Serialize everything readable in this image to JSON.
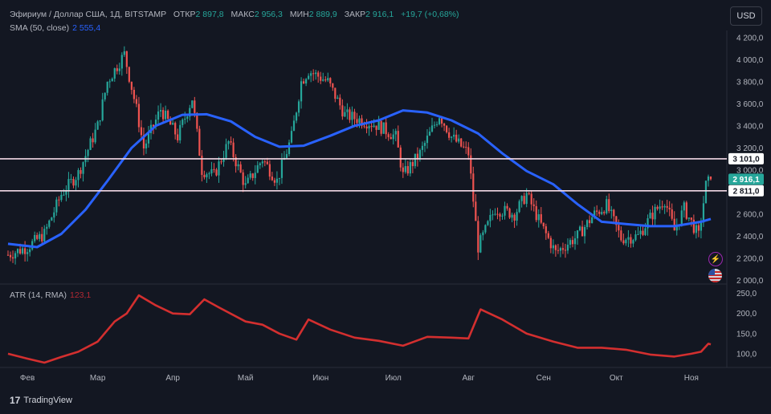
{
  "header": {
    "title": "Эфириум / Доллар США, 1Д, BITSTAMP",
    "open_label": "ОТКР",
    "open_value": "2 897,8",
    "high_label": "МАКС",
    "high_value": "2 956,3",
    "low_label": "МИН",
    "low_value": "2 889,9",
    "close_label": "ЗАКР",
    "close_value": "2 916,1",
    "change": "+19,7 (+0,68%)"
  },
  "sma_legend": {
    "label": "SMA (50, close)",
    "value": "2 555,4"
  },
  "atr_legend": {
    "label": "ATR (14, RMA)",
    "value": "123,1"
  },
  "currency_button": "USD",
  "branding": "TradingView",
  "icons": {
    "alert": "lightning-icon",
    "flag": "us-flag-icon"
  },
  "colors": {
    "background": "#131722",
    "up": "#26a69a",
    "down": "#ef5350",
    "sma": "#2962ff",
    "atr": "#d32f2f",
    "hline": "#f3d9e6",
    "label_bg": "#ffffff",
    "last_price_bg": "#26a69a"
  },
  "chart_data": [
    {
      "type": "candlestick",
      "symbol": "ETH/USD",
      "interval": "1D",
      "y_ticks": [
        "4 200,0",
        "4 000,0",
        "3 800,0",
        "3 600,0",
        "3 400,0",
        "3 200,0",
        "3 000,0",
        "2 800,0",
        "2 600,0",
        "2 400,0",
        "2 200,0",
        "2 000,0"
      ],
      "ylim": [
        1980,
        4250
      ],
      "x_ticks": [
        "Фев",
        "Мар",
        "Апр",
        "Май",
        "Июн",
        "Июл",
        "Авг",
        "Сен",
        "Окт",
        "Ноя"
      ],
      "horizontal_lines": [
        {
          "price": 3101.0,
          "label": "3 101,0"
        },
        {
          "price": 2811.0,
          "label": "2 811,0"
        }
      ],
      "last_price": {
        "price": 2916.1,
        "label": "2 916,1"
      },
      "close_path": [
        {
          "t": "2024-01-24",
          "close": 2230
        },
        {
          "t": "2024-02-01",
          "close": 2300
        },
        {
          "t": "2024-02-08",
          "close": 2420
        },
        {
          "t": "2024-02-15",
          "close": 2780
        },
        {
          "t": "2024-02-22",
          "close": 2970
        },
        {
          "t": "2024-03-01",
          "close": 3400
        },
        {
          "t": "2024-03-05",
          "close": 3800
        },
        {
          "t": "2024-03-12",
          "close": 4050
        },
        {
          "t": "2024-03-17",
          "close": 3550
        },
        {
          "t": "2024-03-20",
          "close": 3200
        },
        {
          "t": "2024-03-27",
          "close": 3550
        },
        {
          "t": "2024-04-03",
          "close": 3300
        },
        {
          "t": "2024-04-09",
          "close": 3650
        },
        {
          "t": "2024-04-13",
          "close": 3000
        },
        {
          "t": "2024-04-18",
          "close": 2950
        },
        {
          "t": "2024-04-24",
          "close": 3250
        },
        {
          "t": "2024-05-01",
          "close": 2850
        },
        {
          "t": "2024-05-08",
          "close": 3100
        },
        {
          "t": "2024-05-14",
          "close": 2900
        },
        {
          "t": "2024-05-20",
          "close": 3300
        },
        {
          "t": "2024-05-24",
          "close": 3800
        },
        {
          "t": "2024-05-27",
          "close": 3900
        },
        {
          "t": "2024-06-04",
          "close": 3800
        },
        {
          "t": "2024-06-11",
          "close": 3500
        },
        {
          "t": "2024-06-18",
          "close": 3450
        },
        {
          "t": "2024-06-25",
          "close": 3400
        },
        {
          "t": "2024-07-02",
          "close": 3300
        },
        {
          "t": "2024-07-05",
          "close": 2950
        },
        {
          "t": "2024-07-12",
          "close": 3150
        },
        {
          "t": "2024-07-20",
          "close": 3500
        },
        {
          "t": "2024-07-25",
          "close": 3300
        },
        {
          "t": "2024-08-01",
          "close": 3150
        },
        {
          "t": "2024-08-05",
          "close": 2300
        },
        {
          "t": "2024-08-12",
          "close": 2650
        },
        {
          "t": "2024-08-20",
          "close": 2600
        },
        {
          "t": "2024-08-25",
          "close": 2780
        },
        {
          "t": "2024-08-31",
          "close": 2500
        },
        {
          "t": "2024-09-06",
          "close": 2250
        },
        {
          "t": "2024-09-15",
          "close": 2400
        },
        {
          "t": "2024-09-22",
          "close": 2600
        },
        {
          "t": "2024-09-27",
          "close": 2680
        },
        {
          "t": "2024-10-03",
          "close": 2380
        },
        {
          "t": "2024-10-10",
          "close": 2400
        },
        {
          "t": "2024-10-16",
          "close": 2600
        },
        {
          "t": "2024-10-21",
          "close": 2730
        },
        {
          "t": "2024-10-25",
          "close": 2450
        },
        {
          "t": "2024-10-29",
          "close": 2650
        },
        {
          "t": "2024-11-04",
          "close": 2400
        },
        {
          "t": "2024-11-07",
          "close": 2860
        },
        {
          "t": "2024-11-09",
          "close": 2916.1
        }
      ]
    },
    {
      "type": "line",
      "name": "SMA (50, close)",
      "points": [
        {
          "t": "2024-01-24",
          "v": 2330
        },
        {
          "t": "2024-02-05",
          "v": 2300
        },
        {
          "t": "2024-02-15",
          "v": 2420
        },
        {
          "t": "2024-02-25",
          "v": 2640
        },
        {
          "t": "2024-03-05",
          "v": 2900
        },
        {
          "t": "2024-03-15",
          "v": 3200
        },
        {
          "t": "2024-03-25",
          "v": 3400
        },
        {
          "t": "2024-04-05",
          "v": 3500
        },
        {
          "t": "2024-04-15",
          "v": 3505
        },
        {
          "t": "2024-04-25",
          "v": 3440
        },
        {
          "t": "2024-05-05",
          "v": 3300
        },
        {
          "t": "2024-05-15",
          "v": 3210
        },
        {
          "t": "2024-05-25",
          "v": 3220
        },
        {
          "t": "2024-06-05",
          "v": 3310
        },
        {
          "t": "2024-06-15",
          "v": 3400
        },
        {
          "t": "2024-06-25",
          "v": 3450
        },
        {
          "t": "2024-07-05",
          "v": 3540
        },
        {
          "t": "2024-07-15",
          "v": 3520
        },
        {
          "t": "2024-07-25",
          "v": 3450
        },
        {
          "t": "2024-08-05",
          "v": 3330
        },
        {
          "t": "2024-08-15",
          "v": 3150
        },
        {
          "t": "2024-08-25",
          "v": 2990
        },
        {
          "t": "2024-09-05",
          "v": 2870
        },
        {
          "t": "2024-09-15",
          "v": 2690
        },
        {
          "t": "2024-09-25",
          "v": 2530
        },
        {
          "t": "2024-10-05",
          "v": 2510
        },
        {
          "t": "2024-10-15",
          "v": 2490
        },
        {
          "t": "2024-10-25",
          "v": 2490
        },
        {
          "t": "2024-11-05",
          "v": 2530
        },
        {
          "t": "2024-11-09",
          "v": 2555.4
        }
      ]
    },
    {
      "type": "line",
      "name": "ATR (14, RMA)",
      "y_ticks": [
        "250,0",
        "200,0",
        "150,0",
        "100,0"
      ],
      "ylim": [
        70,
        265
      ],
      "points": [
        {
          "t": "2024-01-24",
          "v": 100
        },
        {
          "t": "2024-02-01",
          "v": 88
        },
        {
          "t": "2024-02-08",
          "v": 78
        },
        {
          "t": "2024-02-15",
          "v": 92
        },
        {
          "t": "2024-02-22",
          "v": 105
        },
        {
          "t": "2024-03-01",
          "v": 130
        },
        {
          "t": "2024-03-08",
          "v": 180
        },
        {
          "t": "2024-03-13",
          "v": 200
        },
        {
          "t": "2024-03-18",
          "v": 245
        },
        {
          "t": "2024-03-25",
          "v": 220
        },
        {
          "t": "2024-04-01",
          "v": 200
        },
        {
          "t": "2024-04-08",
          "v": 198
        },
        {
          "t": "2024-04-14",
          "v": 235
        },
        {
          "t": "2024-04-20",
          "v": 215
        },
        {
          "t": "2024-05-01",
          "v": 180
        },
        {
          "t": "2024-05-08",
          "v": 172
        },
        {
          "t": "2024-05-15",
          "v": 150
        },
        {
          "t": "2024-05-22",
          "v": 135
        },
        {
          "t": "2024-05-27",
          "v": 185
        },
        {
          "t": "2024-06-05",
          "v": 160
        },
        {
          "t": "2024-06-15",
          "v": 140
        },
        {
          "t": "2024-06-25",
          "v": 132
        },
        {
          "t": "2024-07-05",
          "v": 120
        },
        {
          "t": "2024-07-15",
          "v": 142
        },
        {
          "t": "2024-07-25",
          "v": 140
        },
        {
          "t": "2024-08-01",
          "v": 138
        },
        {
          "t": "2024-08-06",
          "v": 210
        },
        {
          "t": "2024-08-15",
          "v": 185
        },
        {
          "t": "2024-08-25",
          "v": 150
        },
        {
          "t": "2024-09-05",
          "v": 130
        },
        {
          "t": "2024-09-15",
          "v": 115
        },
        {
          "t": "2024-09-25",
          "v": 115
        },
        {
          "t": "2024-10-05",
          "v": 110
        },
        {
          "t": "2024-10-15",
          "v": 98
        },
        {
          "t": "2024-10-25",
          "v": 93
        },
        {
          "t": "2024-11-01",
          "v": 100
        },
        {
          "t": "2024-11-05",
          "v": 105
        },
        {
          "t": "2024-11-08",
          "v": 125
        },
        {
          "t": "2024-11-09",
          "v": 123.1
        }
      ]
    }
  ]
}
